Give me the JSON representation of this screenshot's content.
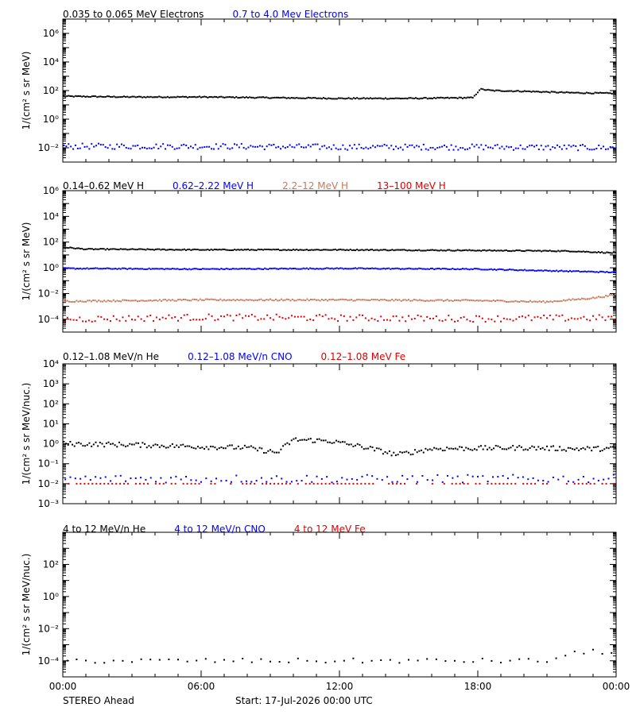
{
  "footer": {
    "spacecraft": "STEREO Ahead",
    "start": "Start: 17-Jul-2026 00:00 UTC"
  },
  "x_axis": {
    "ticks": [
      "00:00",
      "06:00",
      "12:00",
      "18:00",
      "00:00"
    ],
    "range_hours": [
      0,
      24
    ]
  },
  "chart_data": [
    {
      "type": "scatter",
      "panel": "electrons",
      "ylabel": "1/(cm² s sr MeV)",
      "yscale": "log",
      "ylim_exp": [
        -3,
        7
      ],
      "ytick_labels": [
        "10⁻²",
        "10⁰",
        "10²",
        "10⁴",
        "10⁶"
      ],
      "ytick_exps": [
        -2,
        0,
        2,
        4,
        6
      ],
      "legend": [
        {
          "name": "0.035 to 0.065 MeV Electrons",
          "color": "#000000"
        },
        {
          "name": "0.7 to 4.0 Mev Electrons",
          "color": "#0000ff"
        }
      ],
      "series": [
        {
          "name": "0.035 to 0.065 MeV Electrons",
          "color": "#000000",
          "points_x_hours": [
            0,
            3,
            6,
            9,
            12,
            15,
            17.8,
            18.1,
            18.6,
            20,
            22,
            24
          ],
          "points_log10": [
            1.6,
            1.55,
            1.55,
            1.5,
            1.45,
            1.45,
            1.5,
            2.1,
            2.0,
            1.95,
            1.85,
            1.8
          ],
          "jitter": 0.04,
          "density": 330
        },
        {
          "name": "0.7 to 4.0 Mev Electrons",
          "color": "#0000ff",
          "points_x_hours": [
            0,
            6,
            12,
            18,
            24
          ],
          "points_log10": [
            -1.9,
            -1.9,
            -1.95,
            -1.95,
            -2.0
          ],
          "jitter": 0.2,
          "density": 240
        }
      ]
    },
    {
      "type": "scatter",
      "panel": "protons",
      "ylabel": "1/(cm² s sr MeV)",
      "yscale": "log",
      "ylim_exp": [
        -5,
        6
      ],
      "ytick_labels": [
        "10⁻⁴",
        "10⁻²",
        "10⁰",
        "10²",
        "10⁴",
        "10⁶"
      ],
      "ytick_exps": [
        -4,
        -2,
        0,
        2,
        4,
        6
      ],
      "legend": [
        {
          "name": "0.14–0.62 MeV H",
          "color": "#000000"
        },
        {
          "name": "0.62–2.22 MeV H",
          "color": "#0000ff"
        },
        {
          "name": "2.2–12 MeV H",
          "color": "#c8785a"
        },
        {
          "name": "13–100 MeV H",
          "color": "#e00000"
        }
      ],
      "series": [
        {
          "name": "0.14–0.62 MeV H",
          "color": "#000000",
          "points_x_hours": [
            0,
            1,
            6,
            12,
            18,
            22,
            24
          ],
          "points_log10": [
            1.6,
            1.45,
            1.4,
            1.4,
            1.35,
            1.3,
            1.15
          ],
          "jitter": 0.04,
          "density": 330
        },
        {
          "name": "0.62–2.22 MeV H",
          "color": "#0000ff",
          "points_x_hours": [
            0,
            6,
            12,
            18,
            24
          ],
          "points_log10": [
            -0.05,
            -0.1,
            -0.05,
            -0.1,
            -0.35
          ],
          "jitter": 0.04,
          "density": 330
        },
        {
          "name": "2.2–12 MeV H",
          "color": "#c8785a",
          "points_x_hours": [
            0,
            6,
            12,
            18,
            21,
            23,
            24
          ],
          "points_log10": [
            -2.6,
            -2.5,
            -2.5,
            -2.55,
            -2.65,
            -2.35,
            -2.1
          ],
          "jitter": 0.06,
          "density": 300
        },
        {
          "name": "13–100 MeV H",
          "color": "#e00000",
          "points_x_hours": [
            0,
            6,
            12,
            18,
            24
          ],
          "points_log10": [
            -4.0,
            -3.85,
            -3.9,
            -3.95,
            -3.9
          ],
          "jitter": 0.25,
          "density": 180
        }
      ]
    },
    {
      "type": "scatter",
      "panel": "heavy-low",
      "ylabel": "1/(cm² s sr MeV/nuc.)",
      "yscale": "log",
      "ylim_exp": [
        -3,
        4
      ],
      "ytick_labels": [
        "10⁻³",
        "10⁻²",
        "10⁻¹",
        "10⁰",
        "10¹",
        "10²",
        "10³",
        "10⁴"
      ],
      "ytick_exps": [
        -3,
        -2,
        -1,
        0,
        1,
        2,
        3,
        4
      ],
      "legend": [
        {
          "name": "0.12–1.08 MeV/n He",
          "color": "#000000"
        },
        {
          "name": "0.12–1.08 MeV/n CNO",
          "color": "#0000ff"
        },
        {
          "name": "0.12–1.08 MeV Fe",
          "color": "#e00000"
        }
      ],
      "series": [
        {
          "name": "0.12–1.08 MeV/n He",
          "color": "#000000",
          "points_x_hours": [
            0,
            3,
            6,
            8,
            9.3,
            10,
            11.5,
            13,
            14.5,
            16,
            20,
            22,
            24
          ],
          "points_log10": [
            0.0,
            -0.05,
            -0.15,
            -0.2,
            -0.45,
            0.2,
            0.15,
            -0.15,
            -0.55,
            -0.25,
            -0.2,
            -0.25,
            -0.25
          ],
          "jitter": 0.12,
          "density": 260
        },
        {
          "name": "0.12–1.08 MeV/n CNO",
          "color": "#0000ff",
          "points_x_hours": [
            0,
            6,
            12,
            18,
            24
          ],
          "points_log10": [
            -1.75,
            -1.75,
            -1.75,
            -1.75,
            -1.75
          ],
          "jitter": 0.2,
          "density": 110
        },
        {
          "name": "0.12–1.08 MeV Fe",
          "color": "#e00000",
          "points_x_hours": [
            0,
            24
          ],
          "points_log10": [
            -2.0,
            -2.0
          ],
          "jitter": 0.0,
          "density": 140
        }
      ]
    },
    {
      "type": "scatter",
      "panel": "heavy-high",
      "ylabel": "1/(cm² s sr MeV/nuc.)",
      "yscale": "log",
      "ylim_exp": [
        -5,
        4
      ],
      "ytick_labels": [
        "10⁻⁴",
        "10⁻²",
        "10⁰",
        "10²"
      ],
      "ytick_exps": [
        -4,
        -2,
        0,
        2
      ],
      "legend": [
        {
          "name": "4 to 12 MeV/n He",
          "color": "#000000"
        },
        {
          "name": "4 to 12 MeV/n CNO",
          "color": "#0000ff"
        },
        {
          "name": "4 to 12 MeV Fe",
          "color": "#e00000"
        }
      ],
      "series": [
        {
          "name": "4 to 12 MeV/n He",
          "color": "#000000",
          "points_x_hours": [
            0,
            21,
            22,
            23,
            24
          ],
          "points_log10": [
            -4.0,
            -4.0,
            -3.6,
            -3.4,
            -3.5
          ],
          "jitter": 0.15,
          "density": 60
        }
      ]
    }
  ]
}
